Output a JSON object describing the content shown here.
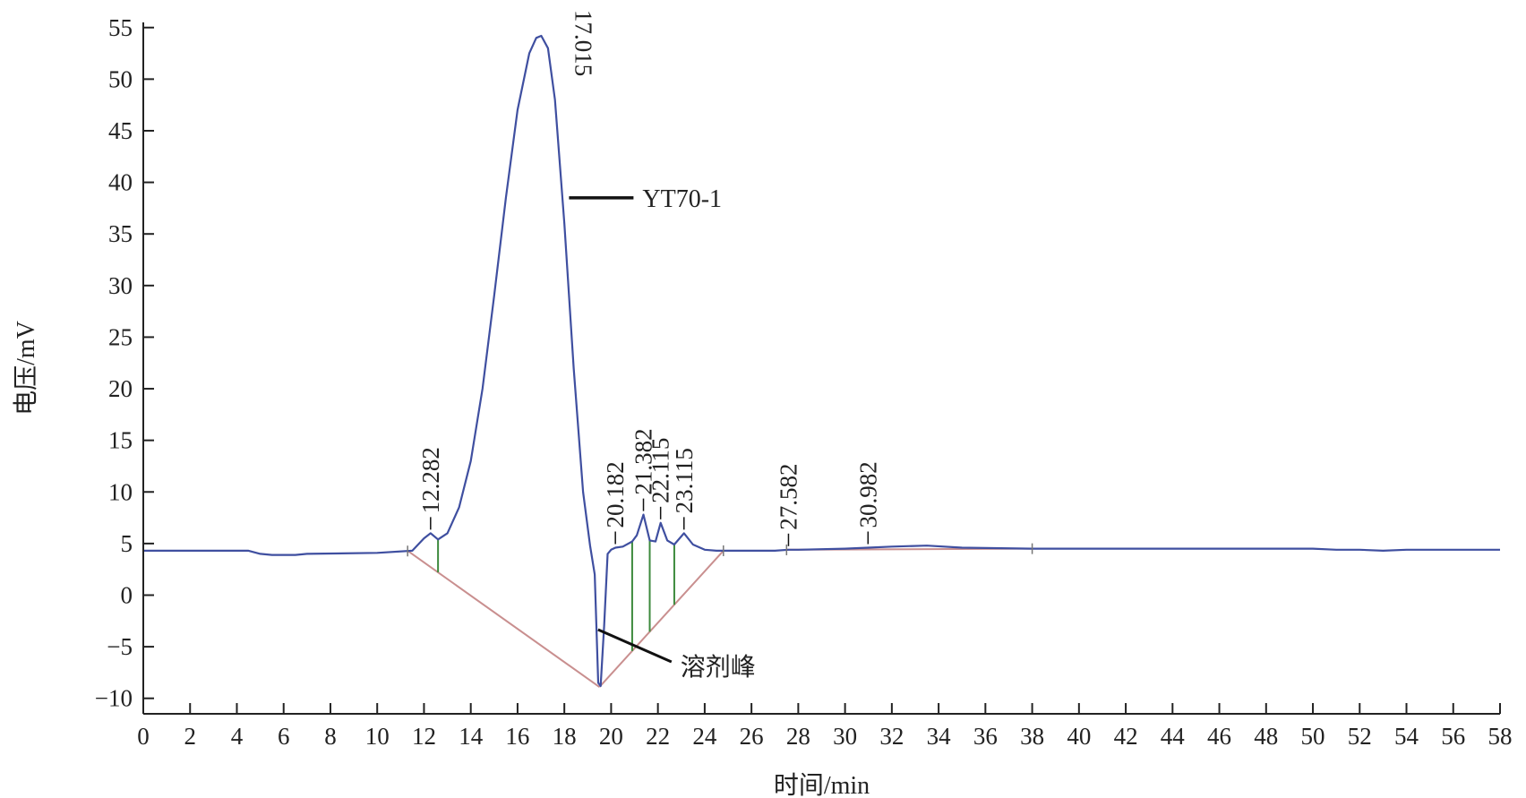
{
  "chart_data": {
    "type": "line",
    "xlabel": "时间/min",
    "ylabel": "电压/mV",
    "xlim": [
      0,
      58
    ],
    "ylim": [
      -11.5,
      55.5
    ],
    "x_ticks": [
      0,
      2,
      4,
      6,
      8,
      10,
      12,
      14,
      16,
      18,
      20,
      22,
      24,
      26,
      28,
      30,
      32,
      34,
      36,
      38,
      40,
      42,
      44,
      46,
      48,
      50,
      52,
      54,
      56,
      58
    ],
    "y_ticks": [
      -10,
      -5,
      0,
      5,
      10,
      15,
      20,
      25,
      30,
      35,
      40,
      45,
      50,
      55
    ],
    "grid": false,
    "colors": {
      "signal": "#3f4fa0",
      "baseline": "#c98f8f",
      "drop_lines": "#3d8a3d",
      "axis": "#222222",
      "annotation": "#111111"
    },
    "series": [
      {
        "x": [
          0,
          2.5,
          4.5,
          5,
          5.5,
          6.5,
          7,
          10,
          11.5,
          12,
          12.282,
          12.6,
          13,
          13.5,
          14,
          14.5,
          15,
          15.5,
          16,
          16.5,
          16.8,
          17.015,
          17.3,
          17.6,
          18,
          18.4,
          18.8,
          19.1,
          19.3,
          19.45,
          19.55,
          19.7,
          19.85,
          20,
          20.182,
          20.5,
          20.9,
          21.1,
          21.382,
          21.65,
          21.9,
          22.115,
          22.4,
          22.7,
          23.115,
          23.5,
          24,
          24.5,
          25,
          27,
          27.582,
          28,
          30,
          30.982,
          32,
          33.5,
          35,
          38,
          42,
          46,
          50,
          51,
          52,
          53,
          54,
          55,
          58
        ],
        "y": [
          4.3,
          4.3,
          4.3,
          4.0,
          3.9,
          3.9,
          4.0,
          4.1,
          4.3,
          5.5,
          6.0,
          5.4,
          6.0,
          8.5,
          13.0,
          20.0,
          29.0,
          38.5,
          47.0,
          52.5,
          54.0,
          54.2,
          53.0,
          48.0,
          36.0,
          22.0,
          10.0,
          4.8,
          2.0,
          -8.5,
          -8.8,
          -3.0,
          4.0,
          4.4,
          4.6,
          4.7,
          5.2,
          5.8,
          7.8,
          5.3,
          5.2,
          7.0,
          5.3,
          4.9,
          6.0,
          4.9,
          4.4,
          4.3,
          4.3,
          4.3,
          4.4,
          4.4,
          4.5,
          4.6,
          4.7,
          4.8,
          4.6,
          4.5,
          4.5,
          4.5,
          4.5,
          4.4,
          4.4,
          4.3,
          4.4,
          4.4,
          4.4
        ]
      }
    ],
    "baseline_segments": [
      {
        "x": [
          11.3,
          19.5
        ],
        "y": [
          4.3,
          -8.9
        ]
      },
      {
        "x": [
          19.5,
          24.8
        ],
        "y": [
          -8.9,
          4.3
        ]
      },
      {
        "x": [
          27.5,
          38
        ],
        "y": [
          4.4,
          4.5
        ]
      }
    ],
    "peak_labels": [
      {
        "text": "12.282",
        "x": 12.282,
        "y": 6.0
      },
      {
        "text": "17.015",
        "x": 17.015,
        "y": 54.2
      },
      {
        "text": "20.182",
        "x": 20.182,
        "y": 4.6
      },
      {
        "text": "21.382",
        "x": 21.382,
        "y": 7.8
      },
      {
        "text": "22.115",
        "x": 22.115,
        "y": 7.0
      },
      {
        "text": "23.115",
        "x": 23.115,
        "y": 6.0
      },
      {
        "text": "27.582",
        "x": 27.582,
        "y": 4.4
      },
      {
        "text": "30.982",
        "x": 30.982,
        "y": 4.6
      }
    ],
    "drop_lines": [
      12.6,
      20.9,
      21.65,
      22.7
    ],
    "annotations": [
      {
        "text": "YT70-1",
        "x": 18.2,
        "y": 38.5
      },
      {
        "text": "溶剂峰",
        "x": 19.9,
        "y": -3.0
      }
    ]
  }
}
